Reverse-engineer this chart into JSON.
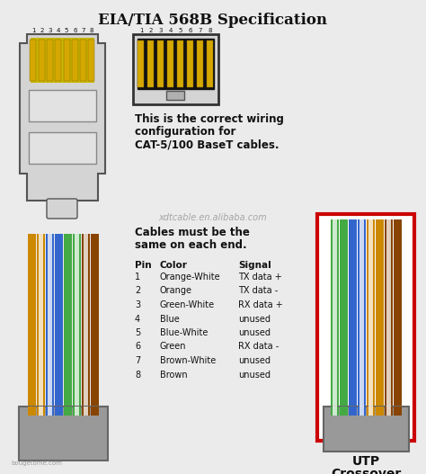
{
  "title": "EIA/TIA 568B Specification",
  "bg_color": "#ebebeb",
  "text_color": "#111111",
  "desc_lines": [
    "This is the correct wiring",
    "configuration for",
    "CAT-5/100 BaseT cables."
  ],
  "cable_lines": [
    "Cables must be the",
    "same on each end."
  ],
  "watermark": "xdtcable.en.alibaba.com",
  "watermark2": "bougetome.com",
  "utp_label": "UTP",
  "crossover_label": "Crossover",
  "pin_header": "Pin",
  "color_header": "Color",
  "signal_header": "Signal",
  "pins": [
    1,
    2,
    3,
    4,
    5,
    6,
    7,
    8
  ],
  "colors_list": [
    "Orange-White",
    "Orange",
    "Green-White",
    "Blue",
    "Blue-White",
    "Green",
    "Brown-White",
    "Brown"
  ],
  "signals": [
    "TX data +",
    "TX data -",
    "RX data +",
    "unused",
    "unused",
    "RX data -",
    "unused",
    "unused"
  ],
  "wire_colors_left": [
    "#cc8800",
    "#cc8800",
    "#3366cc",
    "#3366cc",
    "#3366cc",
    "#44aa44",
    "#44aa44",
    "#884400"
  ],
  "wire_stripe_left": [
    true,
    false,
    true,
    false,
    true,
    false,
    true,
    false
  ],
  "wire_colors_right": [
    "#44aa44",
    "#44aa44",
    "#3366cc",
    "#3366cc",
    "#cc8800",
    "#cc8800",
    "#884400",
    "#884400"
  ],
  "wire_stripe_right": [
    true,
    false,
    false,
    true,
    true,
    false,
    true,
    false
  ],
  "rj45_body_color": "#d4d4d4",
  "rj45_contact_color": "#d4a800",
  "border_color": "#cc0000",
  "box_color": "#999999"
}
